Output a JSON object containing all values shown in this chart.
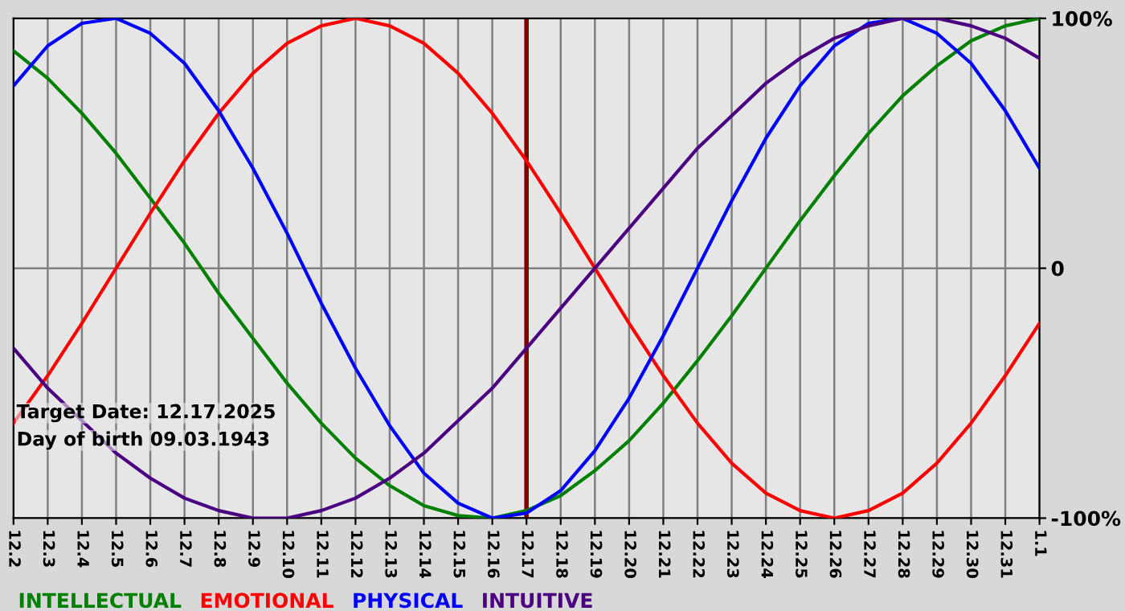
{
  "chart_data": {
    "type": "line",
    "categories": [
      "12.2",
      "12.3",
      "12.4",
      "12.5",
      "12.6",
      "12.7",
      "12.8",
      "12.9",
      "12.10",
      "12.11",
      "12.12",
      "12.13",
      "12.14",
      "12.15",
      "12.16",
      "12.17",
      "12.18",
      "12.19",
      "12.20",
      "12.21",
      "12.22",
      "12.23",
      "12.24",
      "12.25",
      "12.26",
      "12.27",
      "12.28",
      "12.29",
      "12.30",
      "12.31",
      "1.1"
    ],
    "series": [
      {
        "name": "INTELLECTUAL",
        "color": "#008000",
        "values": [
          87,
          76,
          62,
          46,
          28,
          10,
          -10,
          -28,
          -46,
          -62,
          -76,
          -87,
          -95,
          -99,
          -100,
          -97,
          -91,
          -81,
          -69,
          -54,
          -37,
          -19,
          0,
          19,
          37,
          54,
          69,
          81,
          91,
          97,
          100
        ]
      },
      {
        "name": "EMOTIONAL",
        "color": "#ff0000",
        "values": [
          -62,
          -43,
          -22,
          0,
          22,
          43,
          62,
          78,
          90,
          97,
          100,
          97,
          90,
          78,
          62,
          43,
          22,
          0,
          -22,
          -43,
          -62,
          -78,
          -90,
          -97,
          -100,
          -97,
          -90,
          -78,
          -62,
          -43,
          -22
        ]
      },
      {
        "name": "PHYSICAL",
        "color": "#0000ff",
        "values": [
          73,
          89,
          98,
          100,
          94,
          82,
          63,
          40,
          14,
          -14,
          -40,
          -63,
          -82,
          -94,
          -100,
          -98,
          -89,
          -73,
          -52,
          -27,
          0,
          27,
          52,
          73,
          89,
          98,
          100,
          94,
          82,
          63,
          40
        ]
      },
      {
        "name": "INTUITIVE",
        "color": "#4b0082",
        "values": [
          -32,
          -48,
          -61,
          -74,
          -84,
          -92,
          -97,
          -100,
          -100,
          -97,
          -92,
          -84,
          -74,
          -61,
          -48,
          -32,
          -16,
          0,
          16,
          32,
          48,
          61,
          74,
          84,
          92,
          97,
          100,
          100,
          97,
          92,
          84
        ]
      }
    ],
    "ylim": [
      -100,
      100
    ],
    "yticks": [
      {
        "value": 100,
        "label": "100%"
      },
      0,
      {
        "value": -100,
        "label": "-100%"
      }
    ],
    "ref_lines": [
      {
        "axis": "x",
        "value": "12.17",
        "color": "#800000"
      }
    ],
    "annotations": [
      "Target Date: 12.17.2025",
      "Day of birth 09.03.1943"
    ],
    "grid": true,
    "legend": "bottom",
    "marker": "none",
    "line_style": "solid"
  }
}
